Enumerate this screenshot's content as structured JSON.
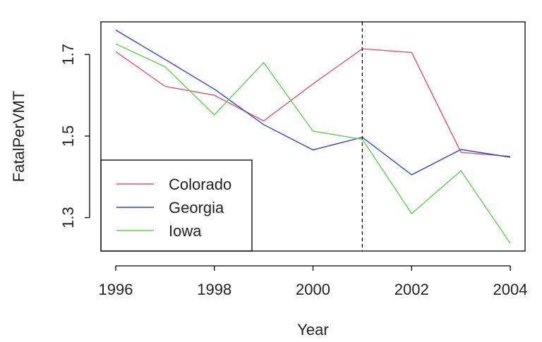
{
  "chart_data": {
    "type": "line",
    "title": "",
    "xlabel": "Year",
    "ylabel": "FatalPerVMT",
    "x": [
      1996,
      1997,
      1998,
      1999,
      2000,
      2001,
      2002,
      2003,
      2004
    ],
    "xlim": [
      1995.7,
      2004.3
    ],
    "ylim": [
      1.218,
      1.78
    ],
    "x_ticks": [
      1996,
      1998,
      2000,
      2002,
      2004
    ],
    "y_ticks": [
      1.3,
      1.5,
      1.7
    ],
    "x_tick_labels": [
      "1996",
      "1998",
      "2000",
      "2002",
      "2004"
    ],
    "y_tick_labels": [
      "1.3",
      "1.5",
      "1.7"
    ],
    "reference_line": {
      "x": 2001,
      "style": "dashed",
      "color": "#000000"
    },
    "grid": false,
    "legend_position": "bottom-left",
    "series": [
      {
        "name": "Colorado",
        "color": "#DF536B",
        "values": [
          1.707,
          1.622,
          1.6,
          1.537,
          1.628,
          1.714,
          1.705,
          1.46,
          1.45
        ]
      },
      {
        "name": "Georgia",
        "color": "#2A46D4",
        "values": [
          1.76,
          1.688,
          1.615,
          1.528,
          1.466,
          1.497,
          1.405,
          1.467,
          1.448
        ]
      },
      {
        "name": "Iowa",
        "color": "#61D04F",
        "values": [
          1.726,
          1.67,
          1.552,
          1.68,
          1.512,
          1.492,
          1.31,
          1.415,
          1.237
        ]
      }
    ]
  }
}
